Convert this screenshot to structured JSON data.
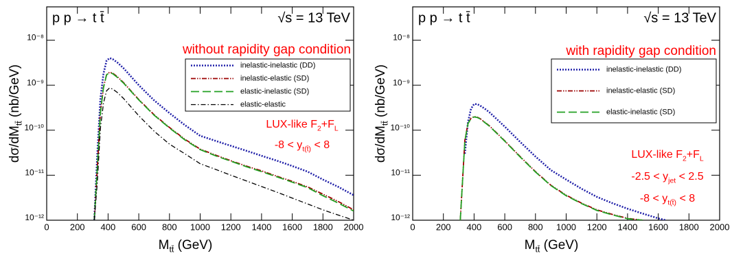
{
  "chart_data": [
    {
      "type": "line",
      "title": "p p → t t̄",
      "subtitle": "√s = 13 TeV",
      "x_label": [
        "M",
        "tt̄",
        "  (GeV)"
      ],
      "y_label": [
        "dσ/dM",
        "tt̄",
        "  (nb/GeV)"
      ],
      "annotations": [
        [
          "without rapidity gap condition"
        ],
        [
          "LUX-like F",
          "2",
          "+F",
          "L"
        ],
        [
          "-8 < y",
          "t(t̄)",
          " < 8"
        ]
      ],
      "annotation_color": "#ff0000",
      "log_y": true,
      "legend": "upper right",
      "xlim": [
        0,
        2000
      ],
      "xticks": [
        0,
        200,
        400,
        600,
        800,
        1000,
        1200,
        1400,
        1600,
        1800,
        2000
      ],
      "ylim": [
        1e-12,
        5.5e-08
      ],
      "yticks": [
        {
          "value": 1e-12,
          "label": "10⁻¹²"
        },
        {
          "value": 1e-11,
          "label": "10⁻¹¹"
        },
        {
          "value": 1e-10,
          "label": "10⁻¹⁰"
        },
        {
          "value": 1e-09,
          "label": "10⁻⁹"
        },
        {
          "value": 1e-08,
          "label": "10⁻⁸"
        }
      ],
      "x": [
        310,
        330,
        350,
        370,
        390,
        410,
        430,
        460,
        500,
        600,
        700,
        800,
        900,
        1000,
        1100,
        1200,
        1300,
        1400,
        1500,
        1600,
        1700,
        1800,
        1900,
        2000
      ],
      "series": [
        {
          "name": "inelastic-inelastic (DD)",
          "color": "#1f1fa8",
          "dash": "dotted",
          "values": [
            1e-12,
            3e-11,
            5e-10,
            1.8e-09,
            3.5e-09,
            4e-09,
            3.8e-09,
            3.2e-09,
            2.4e-09,
            1e-09,
            4.6e-10,
            2.4e-10,
            1.3e-10,
            7.5e-11,
            5.8e-11,
            4.5e-11,
            3.5e-11,
            2.7e-11,
            2.1e-11,
            1.6e-11,
            1.2e-11,
            8e-12,
            5.5e-12,
            3.6e-12
          ]
        },
        {
          "name": "inelastic-elastic (SD)",
          "color": "#9b0000",
          "dash": "dashdotdot",
          "values": [
            1e-12,
            1.5e-11,
            2.5e-10,
            9e-10,
            1.7e-09,
            1.95e-09,
            1.85e-09,
            1.55e-09,
            1.15e-09,
            4.8e-10,
            2.2e-10,
            1.15e-10,
            6.3e-11,
            3.8e-11,
            2.8e-11,
            2.1e-11,
            1.6e-11,
            1.25e-11,
            9.5e-12,
            7.3e-12,
            5.5e-12,
            3.8e-12,
            2.6e-12,
            1.7e-12
          ]
        },
        {
          "name": "elastic-inelastic (SD)",
          "color": "#22a022",
          "dash": "dashed",
          "values": [
            1e-12,
            1.5e-11,
            2.4e-10,
            8.8e-10,
            1.7e-09,
            1.9e-09,
            1.8e-09,
            1.5e-09,
            1.12e-09,
            4.7e-10,
            2.15e-10,
            1.12e-10,
            6.1e-11,
            3.7e-11,
            2.7e-11,
            2.05e-11,
            1.55e-11,
            1.2e-11,
            9.2e-12,
            7e-12,
            5.3e-12,
            3.5e-12,
            2.4e-12,
            1.6e-12
          ]
        },
        {
          "name": "elastic-elastic",
          "color": "#000000",
          "dash": "dashdot",
          "values": [
            1e-12,
            7e-12,
            1.1e-10,
            4e-10,
            7.5e-10,
            8.7e-10,
            8.2e-10,
            6.9e-10,
            5.1e-10,
            2.1e-10,
            9.5e-11,
            4.9e-11,
            3e-11,
            1.8e-11,
            1.35e-11,
            1e-11,
            7.5e-12,
            5.6e-12,
            4.2e-12,
            3.1e-12,
            2.3e-12,
            1.7e-12,
            1.3e-12,
            1e-12
          ]
        }
      ]
    },
    {
      "type": "line",
      "title": "p p → t t̄",
      "subtitle": "√s = 13 TeV",
      "x_label": [
        "M",
        "tt̄",
        "  (GeV)"
      ],
      "y_label": [
        "dσ/dM",
        "tt̄",
        "  (nb/GeV)"
      ],
      "annotations": [
        [
          "with rapidity gap condition"
        ],
        [
          "LUX-like F",
          "2",
          "+F",
          "L"
        ],
        [
          "-2.5 < y",
          "jet",
          " < 2.5"
        ],
        [
          "-8 < y",
          "t(t̄)",
          " < 8"
        ]
      ],
      "annotation_color": "#ff0000",
      "log_y": true,
      "legend": "upper right",
      "xlim": [
        0,
        2000
      ],
      "xticks": [
        0,
        200,
        400,
        600,
        800,
        1000,
        1200,
        1400,
        1600,
        1800,
        2000
      ],
      "ylim": [
        1e-12,
        5.5e-08
      ],
      "yticks": [
        {
          "value": 1e-12,
          "label": "10⁻¹²"
        },
        {
          "value": 1e-11,
          "label": "10⁻¹¹"
        },
        {
          "value": 1e-10,
          "label": "10⁻¹⁰"
        },
        {
          "value": 1e-09,
          "label": "10⁻⁹"
        },
        {
          "value": 1e-08,
          "label": "10⁻⁸"
        }
      ],
      "x": [
        310,
        340,
        360,
        380,
        400,
        420,
        440,
        470,
        500,
        600,
        700,
        800,
        900,
        1000,
        1100,
        1200,
        1300,
        1400,
        1500,
        1600,
        1650
      ],
      "series": [
        {
          "name": "inelastic-inelastic (DD)",
          "color": "#1f1fa8",
          "dash": "dotted",
          "values": [
            null,
            3e-11,
            1.5e-10,
            3e-10,
            3.8e-10,
            3.8e-10,
            3.5e-10,
            3e-10,
            2.5e-10,
            1.2e-10,
            5.5e-11,
            2.6e-11,
            1.3e-11,
            8e-12,
            5e-12,
            3.3e-12,
            2.4e-12,
            1.8e-12,
            1.4e-12,
            1.1e-12,
            1e-12
          ]
        },
        {
          "name": "inelastic-elastic (SD)",
          "color": "#9b0000",
          "dash": "dashdotdot",
          "values": [
            1e-12,
            6e-11,
            1.4e-10,
            1.85e-10,
            2e-10,
            1.95e-10,
            1.8e-10,
            1.5e-10,
            1.25e-10,
            5.8e-11,
            2.6e-11,
            1.2e-11,
            6e-12,
            3.6e-12,
            2.4e-12,
            1.7e-12,
            1.35e-12,
            1.1e-12,
            1e-12,
            null,
            null
          ]
        },
        {
          "name": "elastic-inelastic (SD)",
          "color": "#22a022",
          "dash": "dashed",
          "values": [
            1e-12,
            5.8e-11,
            1.38e-10,
            1.83e-10,
            1.97e-10,
            1.92e-10,
            1.78e-10,
            1.48e-10,
            1.23e-10,
            5.7e-11,
            2.55e-11,
            1.18e-11,
            5.9e-12,
            3.5e-12,
            2.35e-12,
            1.65e-12,
            1.32e-12,
            1.08e-12,
            1e-12,
            null,
            null
          ]
        }
      ]
    }
  ]
}
